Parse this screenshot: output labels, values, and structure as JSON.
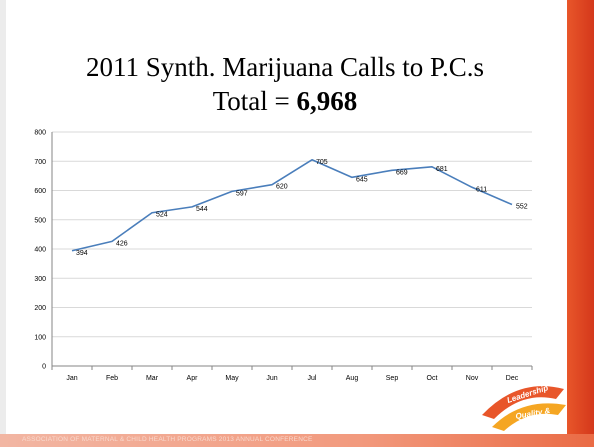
{
  "slide": {
    "title_line1": "2011 Synth. Marijuana Calls to P.C.s",
    "title_total_label": "Total = ",
    "title_total_value": "6,968",
    "footer_text": "ASSOCIATION OF MATERNAL & CHILD HEALTH PROGRAMS 2013 ANNUAL CONFERENCE",
    "logo_words": [
      "Leadership",
      "Quality &",
      "Action"
    ]
  },
  "colors": {
    "line": "#4a7ebb",
    "accent_red": "#d4381b",
    "accent_orange": "#f5a623"
  },
  "chart_data": {
    "type": "line",
    "categories": [
      "Jan",
      "Feb",
      "Mar",
      "Apr",
      "May",
      "Jun",
      "Jul",
      "Aug",
      "Sep",
      "Oct",
      "Nov",
      "Dec"
    ],
    "series": [
      {
        "values": [
          394,
          426,
          524,
          544,
          597,
          620,
          705,
          645,
          669,
          681,
          611,
          552
        ]
      }
    ],
    "yticks": [
      0,
      100,
      200,
      300,
      400,
      500,
      600,
      700,
      800
    ],
    "ylim": [
      0,
      800
    ],
    "grid": true,
    "legend": "none",
    "data_labels": true
  }
}
